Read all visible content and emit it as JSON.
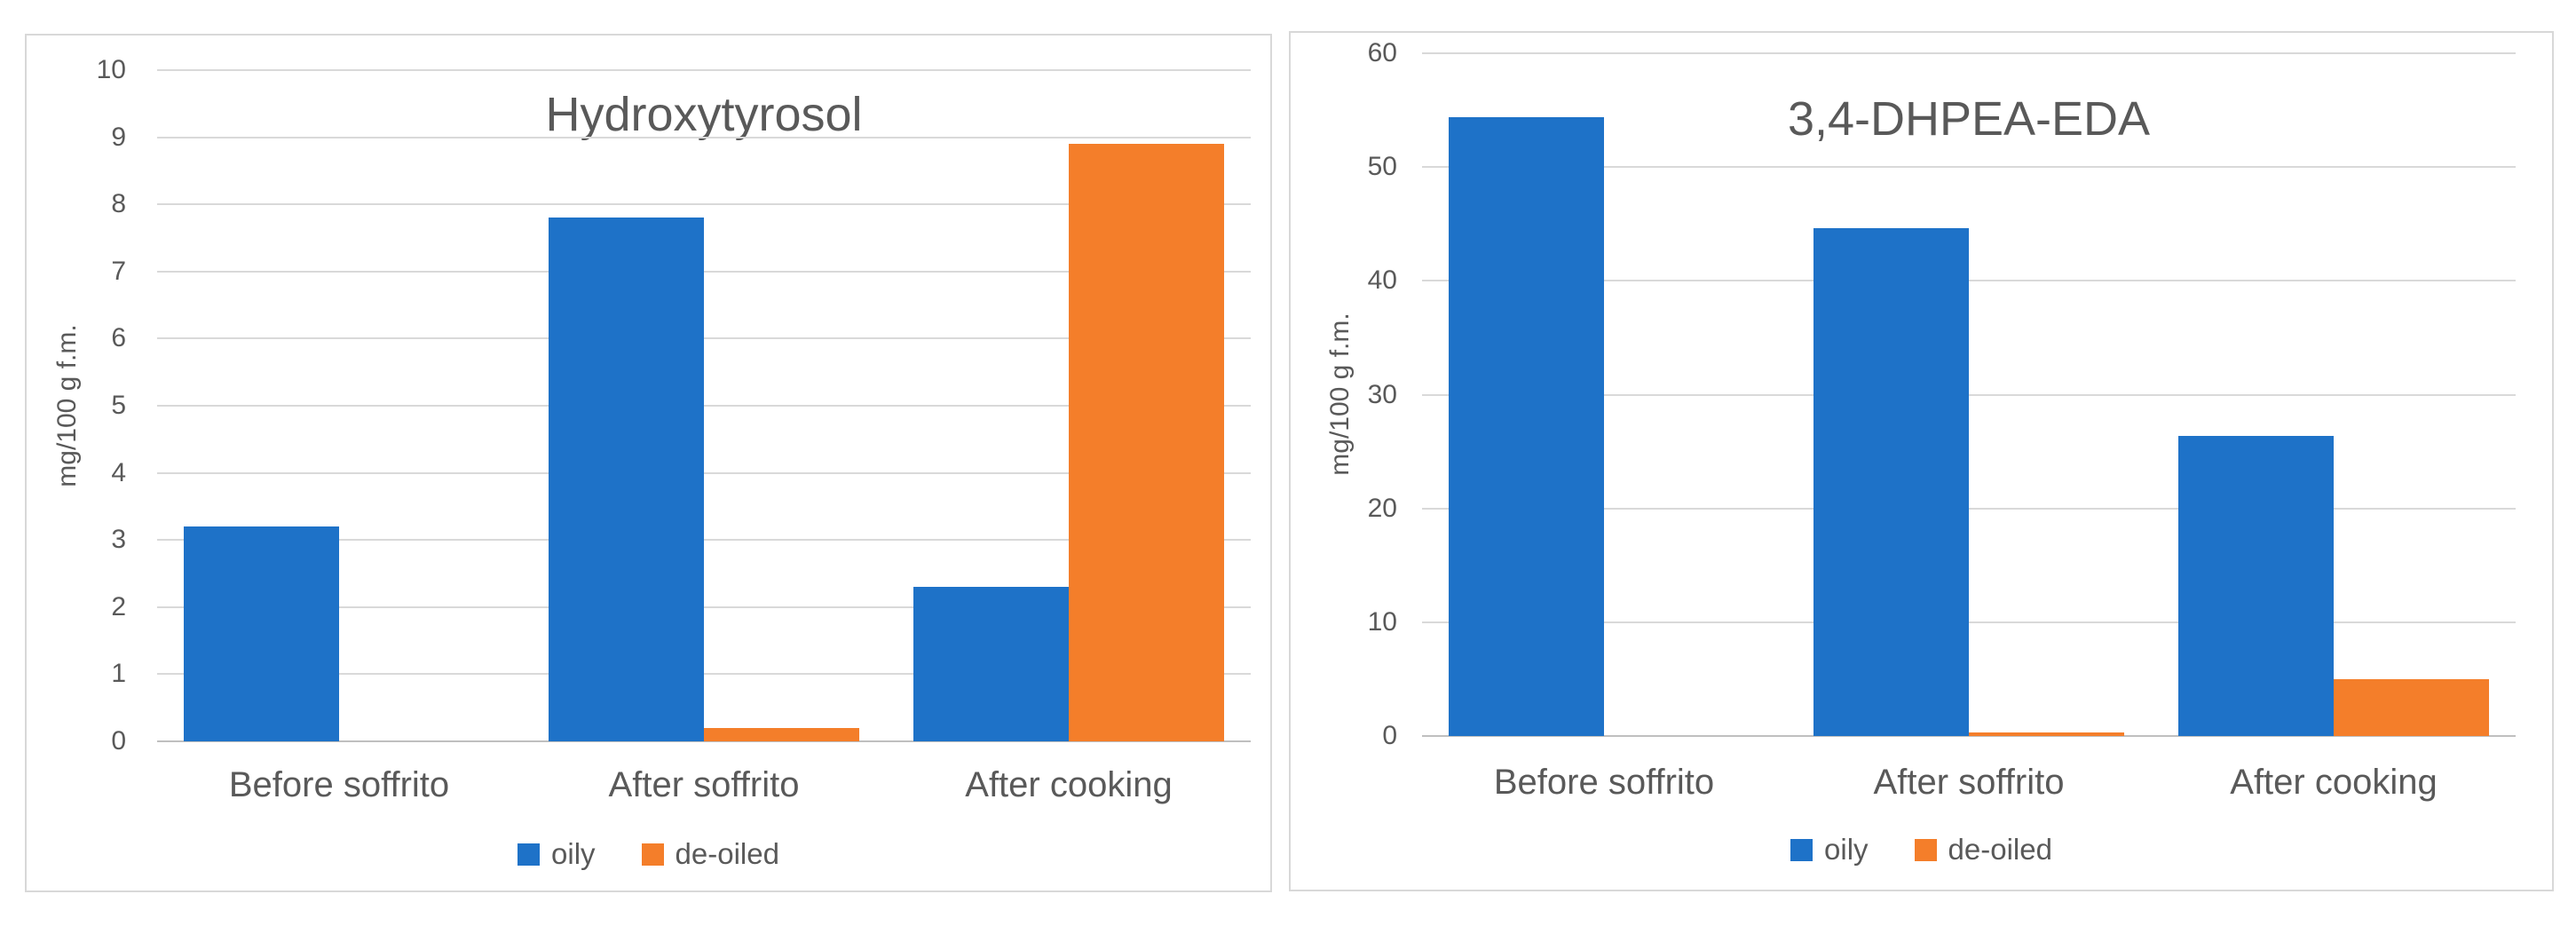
{
  "figure": {
    "background_color": "#FFFFFF",
    "panel_border_color": "#D8D8D8",
    "gridline_color": "#D9D9D9",
    "text_color": "#595959"
  },
  "chart_data": [
    {
      "type": "bar",
      "title": "Hydroxytyrosol",
      "ylabel": "mg/100 g f.m.",
      "xlabel": "",
      "categories": [
        "Before soffrito",
        "After soffrito",
        "After cooking"
      ],
      "series": [
        {
          "name": "oily",
          "color": "#1E72C8",
          "values": [
            3.2,
            7.8,
            2.3
          ]
        },
        {
          "name": "de-oiled",
          "color": "#F47E2A",
          "values": [
            0,
            0.2,
            8.9
          ]
        }
      ],
      "ylim": [
        0,
        10
      ],
      "ytick_step": 1,
      "yticks": [
        "0",
        "1",
        "2",
        "3",
        "4",
        "5",
        "6",
        "7",
        "8",
        "9",
        "10"
      ],
      "grid": true,
      "legend_position": "bottom"
    },
    {
      "type": "bar",
      "title": "3,4-DHPEA-EDA",
      "ylabel": "mg/100 g f.m.",
      "xlabel": "",
      "categories": [
        "Before soffrito",
        "After soffrito",
        "After cooking"
      ],
      "series": [
        {
          "name": "oily",
          "color": "#1E72C8",
          "values": [
            54.4,
            44.6,
            26.4
          ]
        },
        {
          "name": "de-oiled",
          "color": "#F47E2A",
          "values": [
            0,
            0.3,
            5.0
          ]
        }
      ],
      "ylim": [
        0,
        60
      ],
      "ytick_step": 10,
      "yticks": [
        "0",
        "10",
        "20",
        "30",
        "40",
        "50",
        "60"
      ],
      "grid": true,
      "legend_position": "bottom"
    }
  ]
}
